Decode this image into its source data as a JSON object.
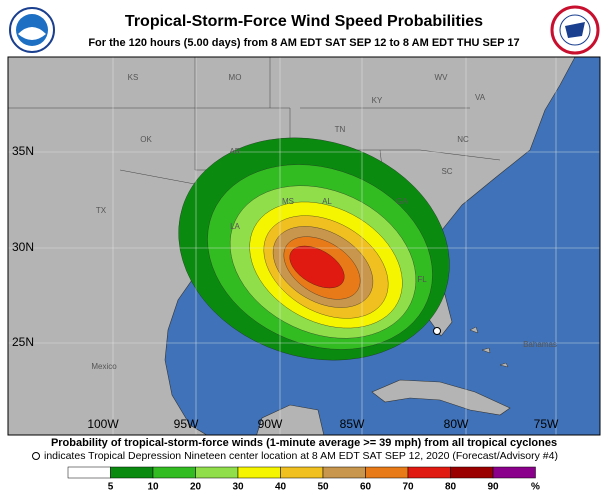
{
  "header": {
    "title": "Tropical-Storm-Force Wind Speed Probabilities",
    "subtitle": "For the 120 hours (5.00 days) from 8 AM EDT SAT SEP 12 to 8 AM EDT THU SEP 17"
  },
  "map": {
    "place_labels": [
      "KS",
      "MO",
      "KY",
      "WV",
      "VA",
      "OK",
      "TN",
      "NC",
      "AR",
      "SC",
      "MS",
      "AL",
      "GA",
      "TX",
      "LA",
      "FL",
      "Mexico",
      "Bahamas"
    ],
    "lat_labels": [
      "35N",
      "30N",
      "25N"
    ],
    "lon_labels": [
      "100W",
      "95W",
      "90W",
      "85W",
      "80W",
      "75W"
    ]
  },
  "footer": {
    "caption": "Probability of tropical-storm-force winds (1-minute average >= 39 mph) from all tropical cyclones",
    "note": "indicates Tropical Depression Nineteen center location at 8 AM EDT SAT SEP 12, 2020 (Forecast/Advisory #4)"
  },
  "legend": {
    "colors": [
      "#ffffff",
      "#0b8a10",
      "#33bb22",
      "#8fde4a",
      "#f5f500",
      "#f0c020",
      "#c8964c",
      "#e87a18",
      "#e01a10",
      "#9a0000",
      "#8b008b"
    ],
    "labels": [
      5,
      10,
      20,
      30,
      40,
      50,
      60,
      70,
      80,
      90,
      "%"
    ]
  }
}
